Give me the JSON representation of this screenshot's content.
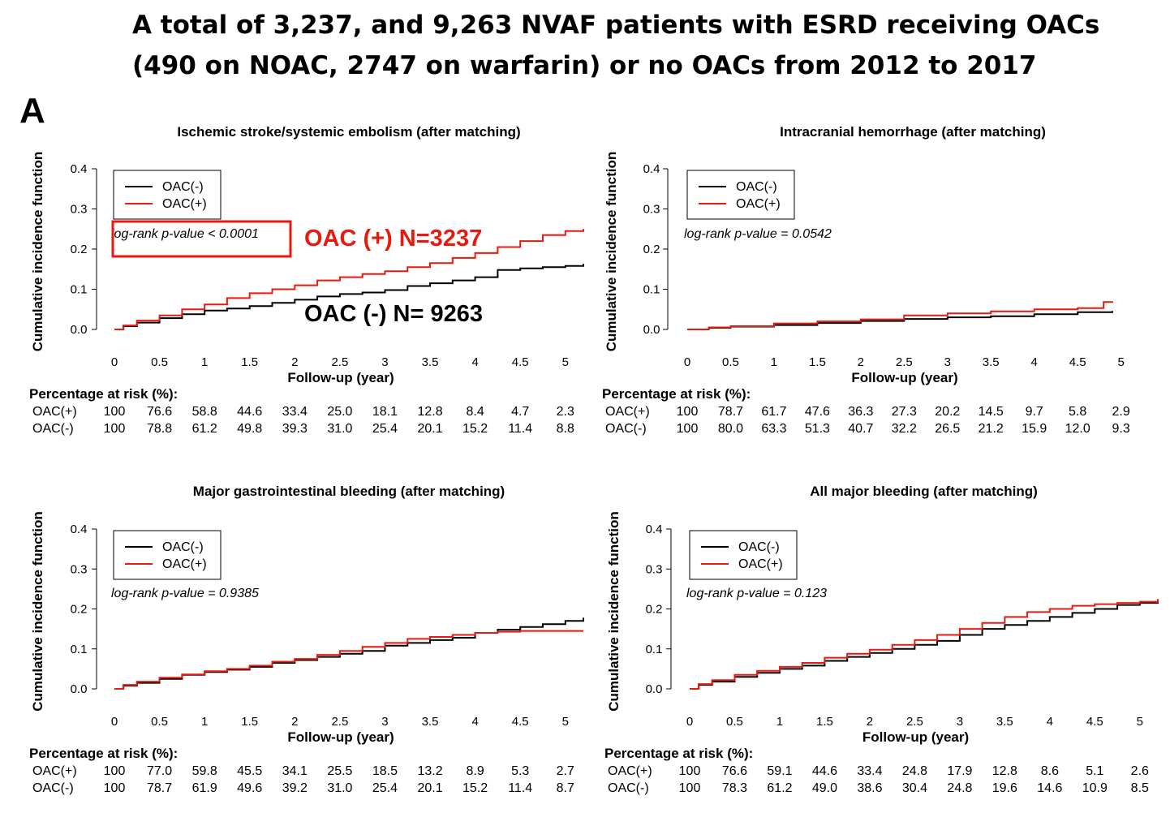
{
  "heading": {
    "line1": "A total of 3,237, and 9,263 NVAF patients with ESRD receiving OACs",
    "line2": "(490 on NOAC, 2747 on warfarin) or no OACs from 2012 to 2017"
  },
  "panel_letter": "A",
  "colors": {
    "oac_pos": "#e8190f",
    "oac_neg": "#000000",
    "annotation_red": "#e8190f"
  },
  "annotations": {
    "oac_pos_n": "OAC (+) N=3237",
    "oac_neg_n": "OAC (-) N= 9263"
  },
  "chart_data": [
    {
      "type": "line",
      "title": "Ischemic stroke/systemic embolism (after matching)",
      "xlabel": "Follow-up (year)",
      "ylabel": "Cumulative incidence function",
      "xlim": [
        0,
        5.2
      ],
      "ylim": [
        0,
        0.4
      ],
      "xticks": [
        "0",
        "0.5",
        "1",
        "1.5",
        "2",
        "2.5",
        "3",
        "3.5",
        "4",
        "4.5",
        "5"
      ],
      "yticks": [
        "0.0",
        "0.1",
        "0.2",
        "0.3",
        "0.4"
      ],
      "legend": [
        "OAC(-)",
        "OAC(+)"
      ],
      "legend_position": "top-left",
      "pvalue_text": "log-rank p-value < 0.0001",
      "pvalue_highlighted": true,
      "series": [
        {
          "name": "OAC(-)",
          "color": "#000000",
          "x": [
            0,
            0.1,
            0.25,
            0.5,
            0.75,
            1,
            1.25,
            1.5,
            1.75,
            2,
            2.25,
            2.5,
            2.75,
            3,
            3.25,
            3.5,
            3.75,
            4,
            4.25,
            4.5,
            4.75,
            5,
            5.2
          ],
          "y": [
            0,
            0.008,
            0.017,
            0.028,
            0.038,
            0.047,
            0.052,
            0.058,
            0.066,
            0.074,
            0.082,
            0.088,
            0.092,
            0.098,
            0.108,
            0.115,
            0.122,
            0.13,
            0.148,
            0.152,
            0.155,
            0.158,
            0.163
          ]
        },
        {
          "name": "OAC(+)",
          "color": "#e8190f",
          "x": [
            0,
            0.1,
            0.25,
            0.5,
            0.75,
            1,
            1.25,
            1.5,
            1.75,
            2,
            2.25,
            2.5,
            2.75,
            3,
            3.25,
            3.5,
            3.75,
            4,
            4.25,
            4.5,
            4.75,
            5,
            5.2
          ],
          "y": [
            0,
            0.01,
            0.022,
            0.035,
            0.05,
            0.062,
            0.078,
            0.09,
            0.1,
            0.11,
            0.122,
            0.13,
            0.138,
            0.145,
            0.155,
            0.165,
            0.178,
            0.19,
            0.205,
            0.22,
            0.235,
            0.245,
            0.25
          ]
        }
      ],
      "risk_table": {
        "header": "Percentage at risk (%):",
        "rows": [
          {
            "label": "OAC(+)",
            "values": [
              "100",
              "76.6",
              "58.8",
              "44.6",
              "33.4",
              "25.0",
              "18.1",
              "12.8",
              "8.4",
              "4.7",
              "2.3"
            ]
          },
          {
            "label": "OAC(-)",
            "values": [
              "100",
              "78.8",
              "61.2",
              "49.8",
              "39.3",
              "31.0",
              "25.4",
              "20.1",
              "15.2",
              "11.4",
              "8.8"
            ]
          }
        ]
      }
    },
    {
      "type": "line",
      "title": "Intracranial hemorrhage (after matching)",
      "xlabel": "Follow-up (year)",
      "ylabel": "Cumulative incidence function",
      "xlim": [
        0,
        5.2
      ],
      "ylim": [
        0,
        0.4
      ],
      "xticks": [
        "0",
        "0.5",
        "1",
        "1.5",
        "2",
        "2.5",
        "3",
        "3.5",
        "4",
        "4.5",
        "5"
      ],
      "yticks": [
        "0.0",
        "0.1",
        "0.2",
        "0.3",
        "0.4"
      ],
      "legend": [
        "OAC(-)",
        "OAC(+)"
      ],
      "legend_position": "top-left",
      "pvalue_text": "log-rank p-value = 0.0542",
      "pvalue_highlighted": false,
      "series": [
        {
          "name": "OAC(-)",
          "color": "#000000",
          "x": [
            0,
            0.25,
            0.5,
            1,
            1.5,
            2,
            2.5,
            3,
            3.5,
            4,
            4.5,
            4.9
          ],
          "y": [
            0,
            0.004,
            0.007,
            0.011,
            0.016,
            0.021,
            0.026,
            0.03,
            0.033,
            0.038,
            0.043,
            0.046
          ]
        },
        {
          "name": "OAC(+)",
          "color": "#e8190f",
          "x": [
            0,
            0.25,
            0.5,
            1,
            1.5,
            2,
            2.5,
            3,
            3.5,
            4,
            4.5,
            4.8,
            4.9
          ],
          "y": [
            0,
            0.005,
            0.008,
            0.015,
            0.02,
            0.025,
            0.035,
            0.04,
            0.045,
            0.05,
            0.053,
            0.068,
            0.07
          ]
        }
      ],
      "risk_table": {
        "header": "Percentage at risk (%):",
        "rows": [
          {
            "label": "OAC(+)",
            "values": [
              "100",
              "78.7",
              "61.7",
              "47.6",
              "36.3",
              "27.3",
              "20.2",
              "14.5",
              "9.7",
              "5.8",
              "2.9"
            ]
          },
          {
            "label": "OAC(-)",
            "values": [
              "100",
              "80.0",
              "63.3",
              "51.3",
              "40.7",
              "32.2",
              "26.5",
              "21.2",
              "15.9",
              "12.0",
              "9.3"
            ]
          }
        ]
      }
    },
    {
      "type": "line",
      "title": "Major gastrointestinal bleeding (after matching)",
      "xlabel": "Follow-up (year)",
      "ylabel": "Cumulative incidence function",
      "xlim": [
        0,
        5.2
      ],
      "ylim": [
        0,
        0.4
      ],
      "xticks": [
        "0",
        "0.5",
        "1",
        "1.5",
        "2",
        "2.5",
        "3",
        "3.5",
        "4",
        "4.5",
        "5"
      ],
      "yticks": [
        "0.0",
        "0.1",
        "0.2",
        "0.3",
        "0.4"
      ],
      "legend": [
        "OAC(-)",
        "OAC(+)"
      ],
      "legend_position": "top-left",
      "pvalue_text": "log-rank p-value = 0.9385",
      "pvalue_highlighted": false,
      "series": [
        {
          "name": "OAC(-)",
          "color": "#000000",
          "x": [
            0,
            0.1,
            0.25,
            0.5,
            0.75,
            1,
            1.25,
            1.5,
            1.75,
            2,
            2.25,
            2.5,
            2.75,
            3,
            3.25,
            3.5,
            3.75,
            4,
            4.25,
            4.5,
            4.75,
            5,
            5.2
          ],
          "y": [
            0,
            0.008,
            0.015,
            0.025,
            0.035,
            0.042,
            0.048,
            0.055,
            0.065,
            0.072,
            0.08,
            0.088,
            0.095,
            0.108,
            0.115,
            0.122,
            0.128,
            0.14,
            0.148,
            0.155,
            0.162,
            0.17,
            0.178
          ]
        },
        {
          "name": "OAC(+)",
          "color": "#e8190f",
          "x": [
            0,
            0.1,
            0.25,
            0.5,
            0.75,
            1,
            1.25,
            1.5,
            1.75,
            2,
            2.25,
            2.5,
            2.75,
            3,
            3.25,
            3.5,
            3.75,
            4,
            4.25,
            4.5,
            4.75,
            5,
            5.2
          ],
          "y": [
            0,
            0.01,
            0.018,
            0.028,
            0.036,
            0.044,
            0.05,
            0.058,
            0.068,
            0.075,
            0.085,
            0.095,
            0.105,
            0.115,
            0.125,
            0.13,
            0.135,
            0.14,
            0.143,
            0.145,
            0.145,
            0.145,
            0.145
          ]
        }
      ],
      "risk_table": {
        "header": "Percentage at risk (%):",
        "rows": [
          {
            "label": "OAC(+)",
            "values": [
              "100",
              "77.0",
              "59.8",
              "45.5",
              "34.1",
              "25.5",
              "18.5",
              "13.2",
              "8.9",
              "5.3",
              "2.7"
            ]
          },
          {
            "label": "OAC(-)",
            "values": [
              "100",
              "78.7",
              "61.9",
              "49.6",
              "39.2",
              "31.0",
              "25.4",
              "20.1",
              "15.2",
              "11.4",
              "8.7"
            ]
          }
        ]
      }
    },
    {
      "type": "line",
      "title": "All major bleeding (after matching)",
      "xlabel": "Follow-up (year)",
      "ylabel": "Cumulative incidence function",
      "xlim": [
        0,
        5.2
      ],
      "ylim": [
        0,
        0.4
      ],
      "xticks": [
        "0",
        "0.5",
        "1",
        "1.5",
        "2",
        "2.5",
        "3",
        "3.5",
        "4",
        "4.5",
        "5"
      ],
      "yticks": [
        "0.0",
        "0.1",
        "0.2",
        "0.3",
        "0.4"
      ],
      "legend": [
        "OAC(-)",
        "OAC(+)"
      ],
      "legend_position": "top-left",
      "pvalue_text": "log-rank p-value = 0.123",
      "pvalue_highlighted": false,
      "series": [
        {
          "name": "OAC(-)",
          "color": "#000000",
          "x": [
            0,
            0.1,
            0.25,
            0.5,
            0.75,
            1,
            1.25,
            1.5,
            1.75,
            2,
            2.25,
            2.5,
            2.75,
            3,
            3.25,
            3.5,
            3.75,
            4,
            4.25,
            4.5,
            4.75,
            5,
            5.2
          ],
          "y": [
            0,
            0.01,
            0.018,
            0.03,
            0.04,
            0.05,
            0.058,
            0.07,
            0.08,
            0.09,
            0.1,
            0.11,
            0.12,
            0.135,
            0.15,
            0.16,
            0.17,
            0.18,
            0.19,
            0.2,
            0.21,
            0.215,
            0.22
          ]
        },
        {
          "name": "OAC(+)",
          "color": "#e8190f",
          "x": [
            0,
            0.1,
            0.25,
            0.5,
            0.75,
            1,
            1.25,
            1.5,
            1.75,
            2,
            2.25,
            2.5,
            2.75,
            3,
            3.25,
            3.5,
            3.75,
            4,
            4.25,
            4.5,
            4.75,
            5,
            5.2
          ],
          "y": [
            0,
            0.012,
            0.022,
            0.035,
            0.045,
            0.055,
            0.065,
            0.078,
            0.088,
            0.098,
            0.11,
            0.122,
            0.135,
            0.15,
            0.165,
            0.18,
            0.192,
            0.2,
            0.208,
            0.212,
            0.215,
            0.218,
            0.225
          ]
        }
      ],
      "risk_table": {
        "header": "Percentage at risk (%):",
        "rows": [
          {
            "label": "OAC(+)",
            "values": [
              "100",
              "76.6",
              "59.1",
              "44.6",
              "33.4",
              "24.8",
              "17.9",
              "12.8",
              "8.6",
              "5.1",
              "2.6"
            ]
          },
          {
            "label": "OAC(-)",
            "values": [
              "100",
              "78.3",
              "61.2",
              "49.0",
              "38.6",
              "30.4",
              "24.8",
              "19.6",
              "14.6",
              "10.9",
              "8.5"
            ]
          }
        ]
      }
    }
  ]
}
